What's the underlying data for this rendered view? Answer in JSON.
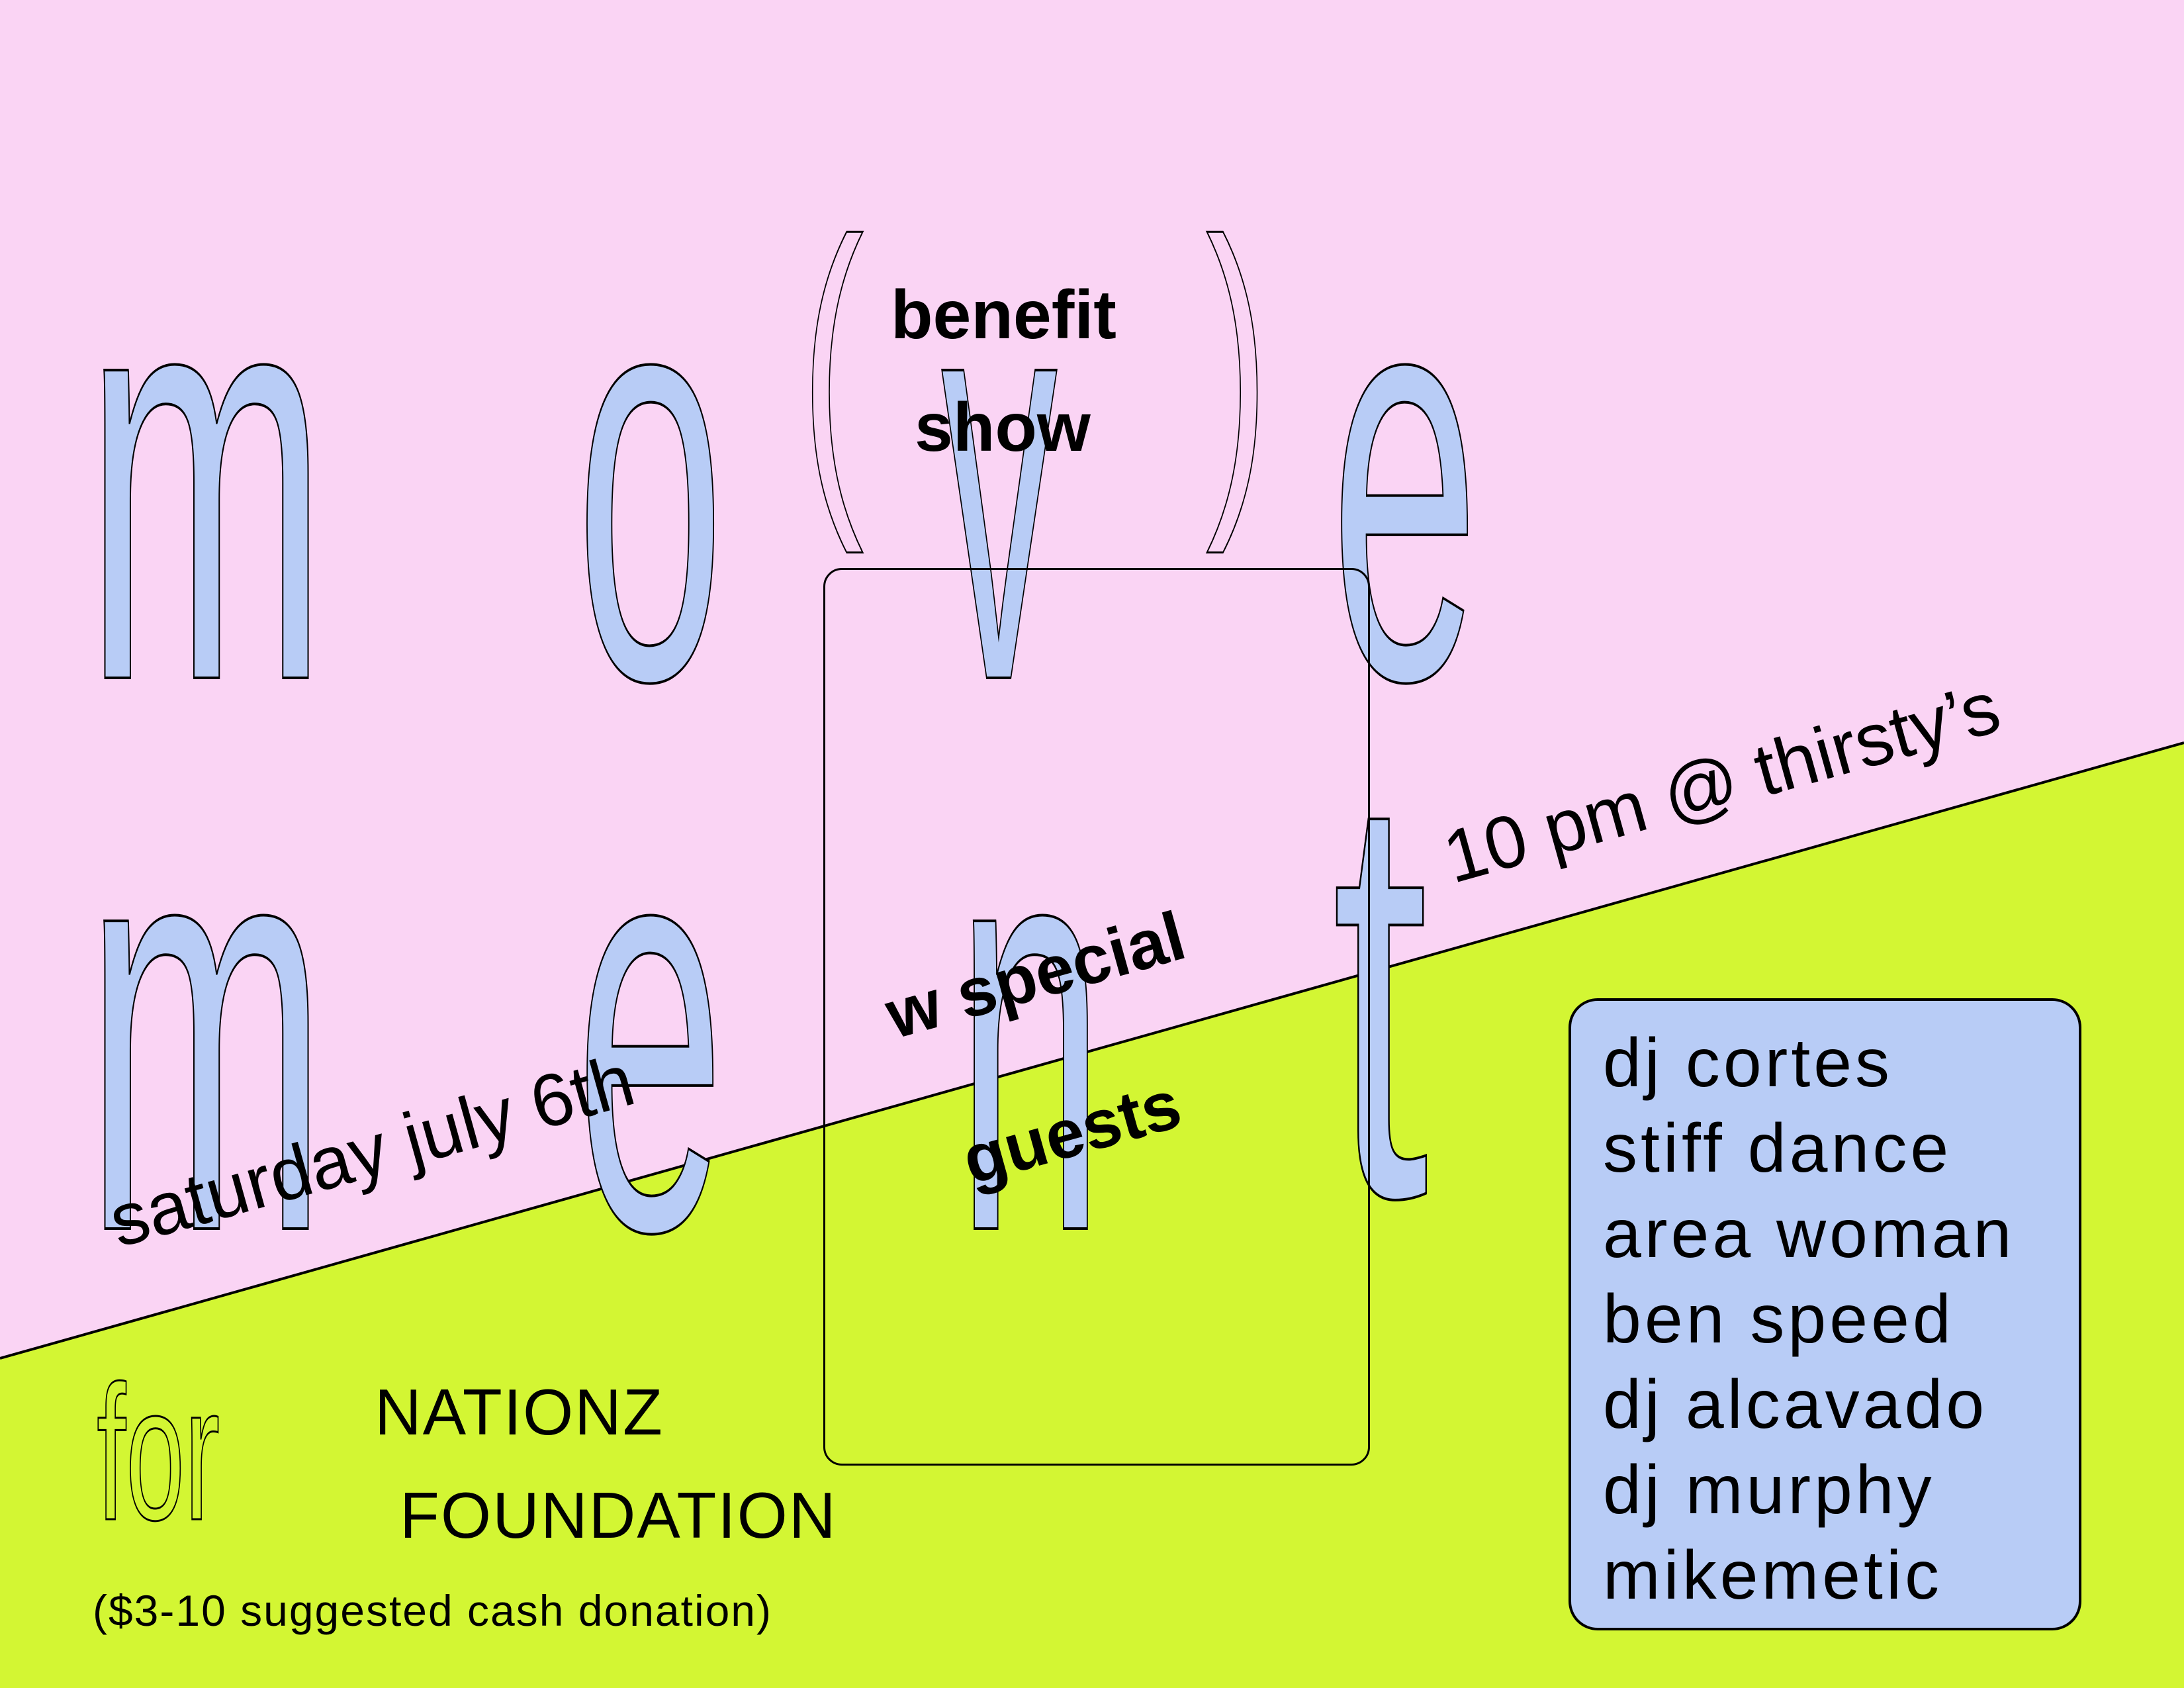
{
  "colors": {
    "pink": "#fad4f4",
    "lime": "#d3f633",
    "blue": "#b8ccf6",
    "ink": "#000000"
  },
  "title": {
    "row1": [
      "m",
      "o",
      "v",
      "e"
    ],
    "row2": [
      "m",
      "e",
      "n",
      "t"
    ],
    "paren_open": "(",
    "paren_close": ")"
  },
  "event": {
    "type_line1": "benefit",
    "type_line2": "show",
    "date": "saturday july 6th",
    "time_place": "10 pm @ thirsty’s",
    "special_line1": "w special",
    "special_line2": "guests"
  },
  "beneficiary": {
    "for": "for",
    "name_line1": "NATIONZ",
    "name_line2": "FOUNDATION",
    "donation": "($3-10 suggested cash donation)"
  },
  "lineup": [
    "dj cortes",
    "stiff dance",
    "area woman",
    "ben speed",
    "dj alcavado",
    "dj murphy",
    "mikemetic"
  ]
}
